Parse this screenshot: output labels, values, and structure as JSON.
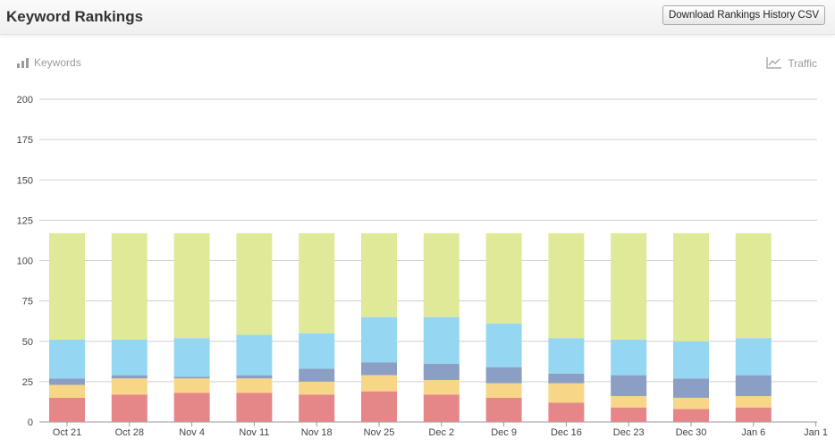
{
  "header": {
    "title": "Keyword Rankings",
    "download_label": "Download Rankings History CSV"
  },
  "legend": {
    "left_label": "Keywords",
    "left_icon": "bar-chart-icon",
    "right_label": "Traffic",
    "right_icon": "line-chart-icon"
  },
  "colors": {
    "rank_1_3": "#e58788",
    "rank_4_10": "#f7d787",
    "rank_11_20": "#8b9ec4",
    "rank_21_50": "#95d7f2",
    "rank_51_plus": "#dfe998"
  },
  "chart_data": {
    "type": "bar",
    "stacked": true,
    "categories": [
      "Oct 21",
      "Oct 28",
      "Nov 4",
      "Nov 11",
      "Nov 18",
      "Nov 25",
      "Dec 2",
      "Dec 9",
      "Dec 16",
      "Dec 23",
      "Dec 30",
      "Jan 6",
      "Jan 1"
    ],
    "ylim": [
      0,
      200
    ],
    "yticks": [
      0,
      25,
      50,
      75,
      100,
      125,
      150,
      175,
      200
    ],
    "grid": true,
    "series": [
      {
        "color": "#e58788",
        "values": [
          15,
          17,
          18,
          18,
          17,
          19,
          17,
          15,
          12,
          9,
          8,
          9,
          null
        ]
      },
      {
        "color": "#f7d787",
        "values": [
          8,
          10,
          9,
          9,
          8,
          10,
          9,
          9,
          12,
          7,
          7,
          7,
          null
        ]
      },
      {
        "color": "#8b9ec4",
        "values": [
          4,
          2,
          1,
          2,
          8,
          8,
          10,
          10,
          6,
          13,
          12,
          13,
          null
        ]
      },
      {
        "color": "#95d7f2",
        "values": [
          24,
          22,
          24,
          25,
          22,
          28,
          29,
          27,
          22,
          22,
          23,
          23,
          null
        ]
      },
      {
        "color": "#dfe998",
        "values": [
          66,
          66,
          65,
          63,
          62,
          52,
          52,
          56,
          65,
          66,
          67,
          65,
          null
        ]
      }
    ]
  }
}
